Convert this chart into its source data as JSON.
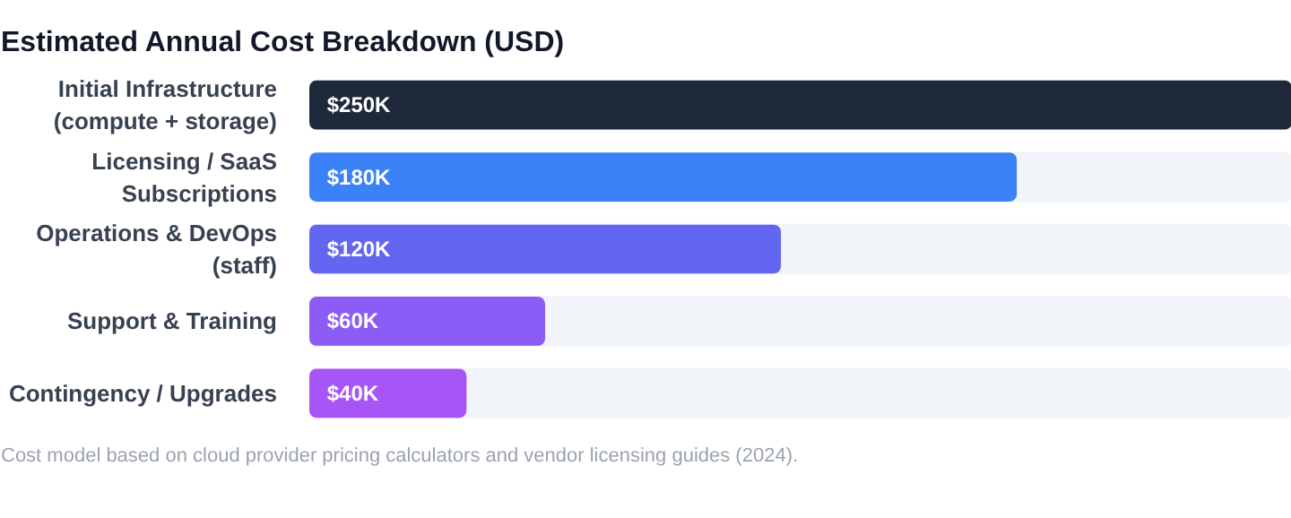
{
  "chart_data": {
    "type": "bar",
    "orientation": "horizontal",
    "title": "Estimated Annual Cost Breakdown (USD)",
    "categories": [
      "Initial Infrastructure (compute + storage)",
      "Licensing / SaaS Subscriptions",
      "Operations & DevOps (staff)",
      "Support & Training",
      "Contingency / Upgrades"
    ],
    "values": [
      250,
      180,
      120,
      60,
      40
    ],
    "colors": [
      "#1e293b",
      "#3b82f6",
      "#6366f1",
      "#8b5cf6",
      "#a855f7"
    ],
    "value_labels": [
      "$250K",
      "$180K",
      "$120K",
      "$60K",
      "$40K"
    ],
    "tick_labels": "y",
    "grid": false,
    "annotations": [
      "Cost model based on cloud provider pricing calculators and vendor licensing guides (2024)."
    ]
  }
}
